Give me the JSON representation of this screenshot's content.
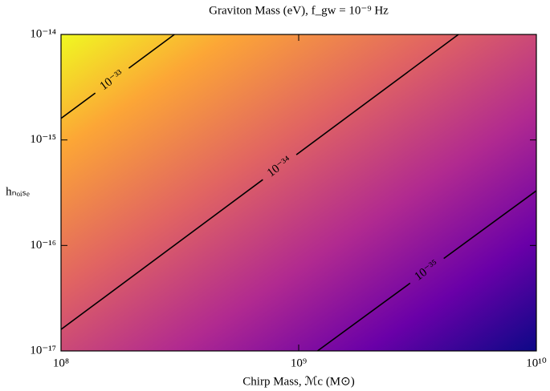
{
  "chart_data": {
    "type": "contour",
    "title": "Graviton Mass (eV), f_gw = 10⁻⁹ Hz",
    "xlabel": "Chirp Mass, ℳc (M⊙)",
    "ylabel": "hₙₒᵢₛₑ",
    "xscale": "log",
    "yscale": "log",
    "xlim": [
      100000000.0,
      10000000000.0
    ],
    "ylim": [
      1e-17,
      1e-14
    ],
    "xticks": [
      {
        "value": 100000000.0,
        "label": "10⁸"
      },
      {
        "value": 1000000000.0,
        "label": "10⁹"
      },
      {
        "value": 10000000000.0,
        "label": "10¹⁰"
      }
    ],
    "yticks": [
      {
        "value": 1e-17,
        "label": "10⁻¹⁷"
      },
      {
        "value": 1e-16,
        "label": "10⁻¹⁶"
      },
      {
        "value": 1e-15,
        "label": "10⁻¹⁵"
      },
      {
        "value": 1e-14,
        "label": "10⁻¹⁴"
      }
    ],
    "series": [
      {
        "name": "10⁻³³",
        "color": "#000000",
        "x": [
          100000000.0,
          300000000.0
        ],
        "y": [
          1.6e-15,
          1e-14
        ]
      },
      {
        "name": "10⁻³⁴",
        "color": "#000000",
        "x": [
          100000000.0,
          4700000000.0
        ],
        "y": [
          1.6e-17,
          1e-14
        ]
      },
      {
        "name": "10⁻³⁵",
        "color": "#000000",
        "x": [
          1200000000.0,
          10000000000.0
        ],
        "y": [
          1e-17,
          3.3e-16
        ]
      }
    ]
  }
}
